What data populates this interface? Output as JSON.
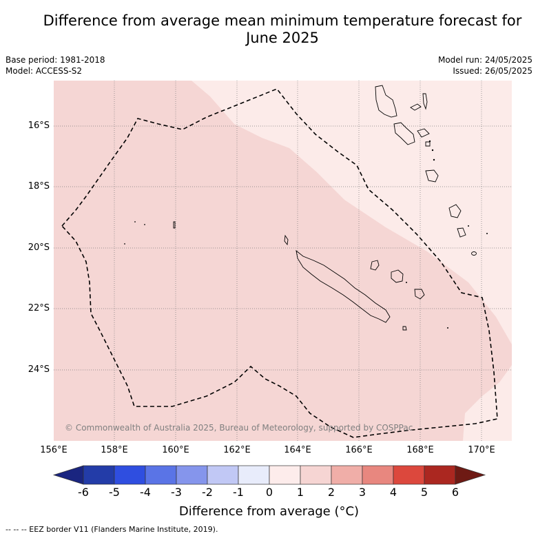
{
  "title_line1": "Difference from average mean minimum temperature forecast for",
  "title_line2": "June 2025",
  "base_period": "Base period: 1981-2018",
  "model": "Model: ACCESS-S2",
  "model_run": "Model run: 24/05/2025",
  "issued": "Issued: 26/05/2025",
  "copyright": "© Commonwealth of Australia 2025, Bureau of Meteorology, supported by COSPPac",
  "lat_labels": [
    "16°S",
    "18°S",
    "20°S",
    "22°S",
    "24°S"
  ],
  "lon_labels": [
    "156°E",
    "158°E",
    "160°E",
    "162°E",
    "164°E",
    "166°E",
    "168°E",
    "170°E"
  ],
  "colorbar": {
    "title": "Difference from average (°C)",
    "ticks": [
      "-6",
      "-5",
      "-4",
      "-3",
      "-2",
      "-1",
      "0",
      "1",
      "2",
      "3",
      "4",
      "5",
      "6"
    ],
    "colors": [
      "#1a2580",
      "#233ca8",
      "#2f4ee0",
      "#5a74e6",
      "#8595ec",
      "#c1c8f5",
      "#e8ecfb",
      "#fdeceb",
      "#f6d5d3",
      "#f0aea8",
      "#e8877f",
      "#dc483d",
      "#ab2720",
      "#6e1a14"
    ]
  },
  "footnote": "-- -- -- EEZ border V11 (Flanders Marine Institute, 2019).",
  "map_fill_colors": {
    "zone_1_2": "#f5d6d4",
    "zone_0_1": "#fcebe9"
  }
}
